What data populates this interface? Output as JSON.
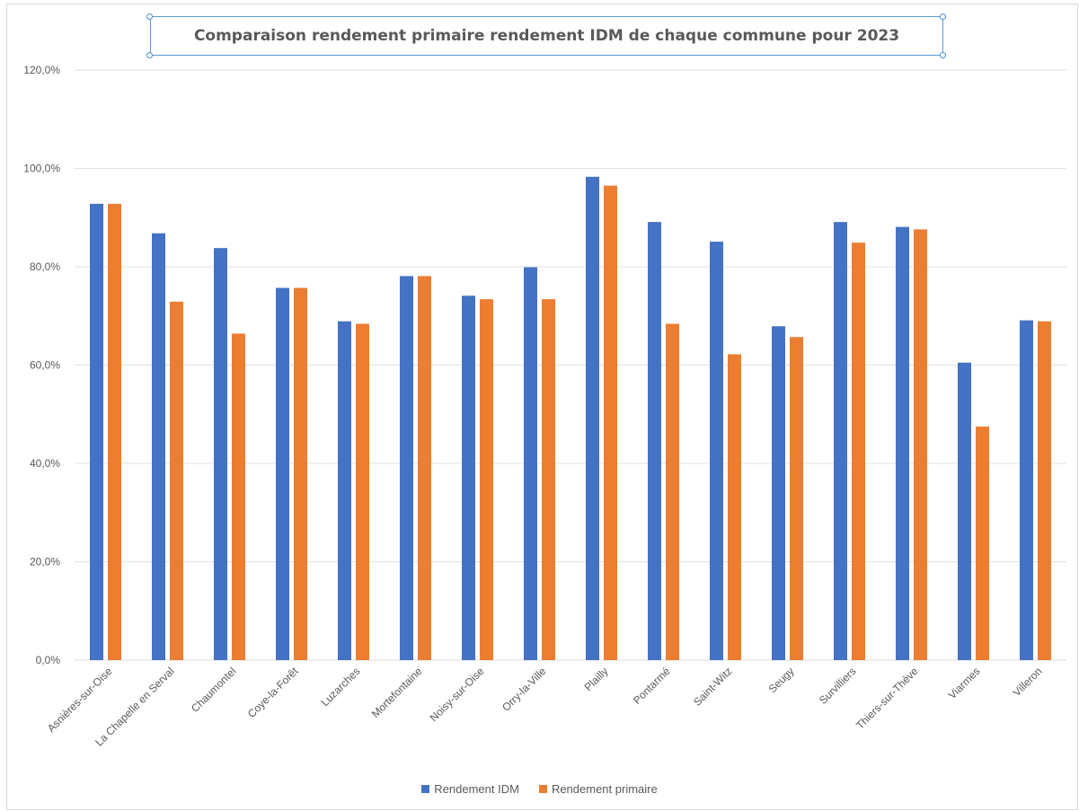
{
  "chart_data": {
    "type": "bar",
    "title": "Comparaison rendement primaire rendement IDM de chaque commune pour 2023",
    "categories": [
      "Asnières-sur-Oise",
      "La Chapelle en Serval",
      "Chaumontel",
      "Coye-la-Forêt",
      "Luzarches",
      "Mortefontaine",
      "Noisy-sur-Oise",
      "Orry-la-Ville",
      "Plailly",
      "Pontarmé",
      "Saint-Witz",
      "Seugy",
      "Survilliers",
      "Thiers-sur-Thève",
      "Viarmes",
      "Villeron"
    ],
    "series": [
      {
        "name": "Rendement IDM",
        "color": "#4472c4",
        "values": [
          92.8,
          86.8,
          83.8,
          75.7,
          68.9,
          78.1,
          74.1,
          79.9,
          98.3,
          89.1,
          85.1,
          67.9,
          89.1,
          88.1,
          60.5,
          69.1
        ]
      },
      {
        "name": "Rendement primaire",
        "color": "#ed7d31",
        "values": [
          92.8,
          72.9,
          66.4,
          75.7,
          68.4,
          78.1,
          73.4,
          73.4,
          96.5,
          68.4,
          62.2,
          65.7,
          84.9,
          87.6,
          47.5,
          68.9
        ]
      }
    ],
    "yticks": [
      "0,0%",
      "20,0%",
      "40,0%",
      "60,0%",
      "80,0%",
      "100,0%",
      "120,0%"
    ],
    "ylim": [
      0,
      120
    ],
    "xlabel": "",
    "ylabel": "",
    "grid": true,
    "legend": "bottom"
  }
}
